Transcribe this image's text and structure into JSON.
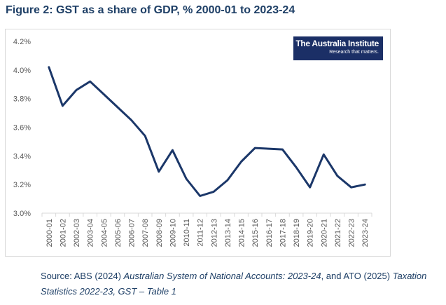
{
  "figure": {
    "title": "Figure 2: GST as a share of GDP, % 2000-01 to 2023-24"
  },
  "logo": {
    "name": "The Australia Institute",
    "tagline": "Research that matters."
  },
  "source": {
    "prefix": "Source: ABS (2024) ",
    "italic1": "Australian System of National Accounts: 2023-24",
    "middle": ", and ATO (2025) ",
    "italic2": "Taxation Statistics 2022-23, GST – Table 1"
  },
  "colors": {
    "line": "#1b3769",
    "title": "#1e3f66",
    "logo_bg": "#1b2f66"
  },
  "chart_data": {
    "type": "line",
    "title": "",
    "xlabel": "",
    "ylabel": "",
    "grid": false,
    "legend": "none",
    "categories": [
      "2000-01",
      "2001-02",
      "2002-03",
      "2003-04",
      "2004-05",
      "2005-06",
      "2006-07",
      "2007-08",
      "2008-09",
      "2009-10",
      "2010-11",
      "2011-12",
      "2012-13",
      "2013-14",
      "2014-15",
      "2015-16",
      "2016-17",
      "2017-18",
      "2018-19",
      "2019-20",
      "2020-21",
      "2021-22",
      "2022-23",
      "2023-24"
    ],
    "values": [
      4.02,
      3.75,
      3.86,
      3.92,
      3.83,
      3.74,
      3.65,
      3.54,
      3.29,
      3.44,
      3.24,
      3.12,
      3.15,
      3.23,
      3.36,
      3.455,
      3.45,
      3.445,
      3.32,
      3.18,
      3.41,
      3.26,
      3.18,
      3.2
    ],
    "ylim": [
      3.0,
      4.2
    ],
    "yticks": [
      "3.0%",
      "3.2%",
      "3.4%",
      "3.6%",
      "3.8%",
      "4.0%",
      "4.2%"
    ],
    "ytick_values": [
      3.0,
      3.2,
      3.4,
      3.6,
      3.8,
      4.0,
      4.2
    ]
  }
}
